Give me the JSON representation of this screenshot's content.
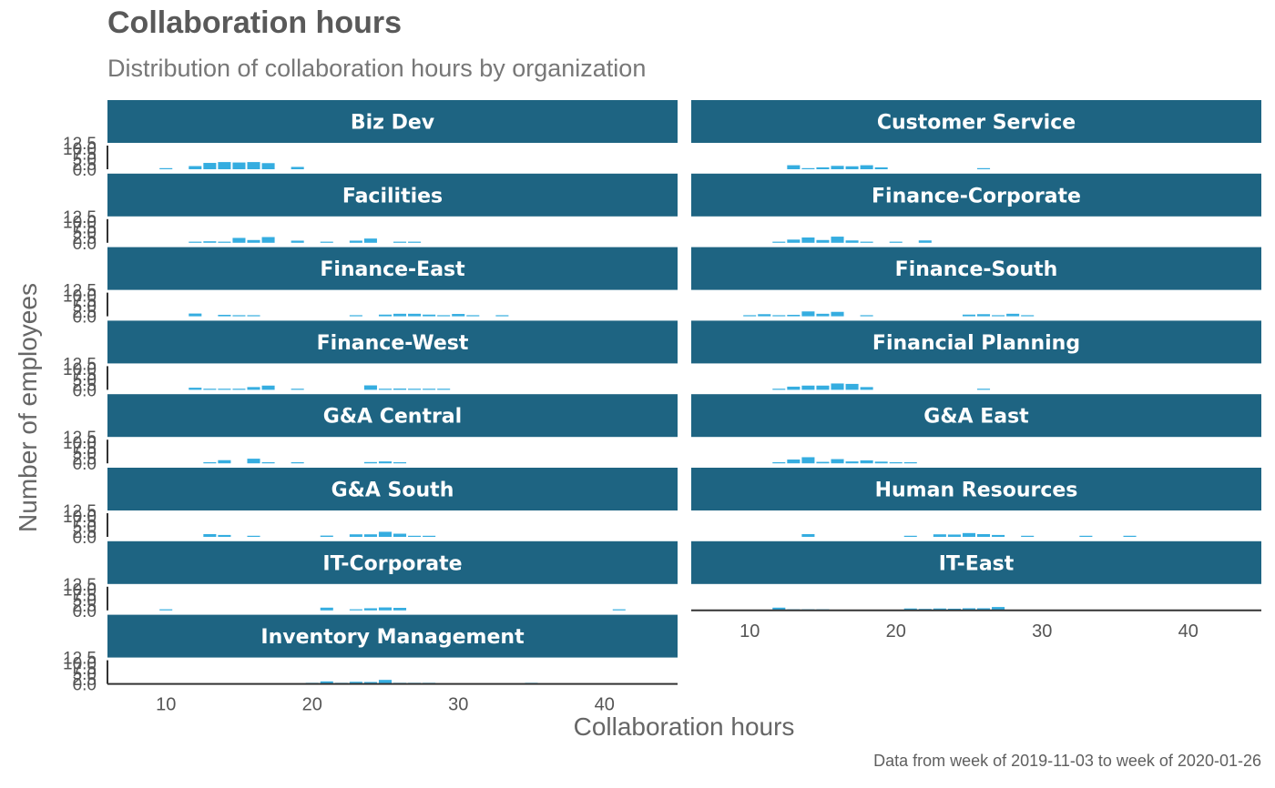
{
  "chart_data": {
    "type": "bar",
    "title": "Collaboration hours",
    "subtitle": "Distribution of collaboration hours by organization",
    "xlabel": "Collaboration hours",
    "ylabel": "Number of employees",
    "caption": "Data from week of 2019-11-03 to week of 2020-01-26",
    "xlim": [
      6,
      45
    ],
    "x_ticks": [
      "10",
      "20",
      "30",
      "40"
    ],
    "y_tick_labels": [
      "0.0",
      "2.5",
      "5.0",
      "7.5",
      "10.0",
      "12.5"
    ],
    "bin_width": 1,
    "colors": {
      "strip": "#1e6482",
      "bar": "#35ade0",
      "axis": "#333333"
    },
    "facets": [
      {
        "name": "Biz Dev",
        "bins": [
          [
            10,
            0.3
          ],
          [
            12,
            1.5
          ],
          [
            13,
            3
          ],
          [
            14,
            3.4
          ],
          [
            15,
            3.2
          ],
          [
            16,
            3.4
          ],
          [
            17,
            2.9
          ],
          [
            19,
            1.1
          ]
        ]
      },
      {
        "name": "Customer Service",
        "bins": [
          [
            13,
            1.9
          ],
          [
            14,
            0.3
          ],
          [
            15,
            0.9
          ],
          [
            16,
            1.6
          ],
          [
            17,
            1.4
          ],
          [
            18,
            1.9
          ],
          [
            19,
            0.9
          ],
          [
            26,
            0.2
          ]
        ]
      },
      {
        "name": "Facilities",
        "bins": [
          [
            12,
            0.3
          ],
          [
            13,
            0.7
          ],
          [
            14,
            0.3
          ],
          [
            15,
            2.3
          ],
          [
            16,
            1.3
          ],
          [
            17,
            2.7
          ],
          [
            19,
            1
          ],
          [
            21,
            0.2
          ],
          [
            23,
            1
          ],
          [
            24,
            2
          ],
          [
            26,
            0.2
          ],
          [
            27,
            0.2
          ]
        ]
      },
      {
        "name": "Finance-Corporate",
        "bins": [
          [
            12,
            0.2
          ],
          [
            13,
            1.5
          ],
          [
            14,
            2.5
          ],
          [
            15,
            1.3
          ],
          [
            16,
            2.9
          ],
          [
            17,
            1.1
          ],
          [
            18,
            0.4
          ],
          [
            20,
            0.2
          ],
          [
            22,
            1.1
          ]
        ]
      },
      {
        "name": "Finance-East",
        "bins": [
          [
            12,
            1.3
          ],
          [
            14,
            0.7
          ],
          [
            15,
            0.2
          ],
          [
            16,
            0.5
          ],
          [
            23,
            0.2
          ],
          [
            25,
            0.8
          ],
          [
            26,
            1.2
          ],
          [
            27,
            1.2
          ],
          [
            28,
            0.8
          ],
          [
            29,
            0.3
          ],
          [
            30,
            1.1
          ],
          [
            31,
            0.3
          ],
          [
            33,
            0.2
          ]
        ]
      },
      {
        "name": "Finance-South",
        "bins": [
          [
            10,
            0.2
          ],
          [
            11,
            1
          ],
          [
            12,
            0.5
          ],
          [
            13,
            0.7
          ],
          [
            14,
            2.3
          ],
          [
            15,
            1.2
          ],
          [
            16,
            2.1
          ],
          [
            18,
            0.2
          ],
          [
            25,
            0.8
          ],
          [
            26,
            1
          ],
          [
            27,
            0.3
          ],
          [
            28,
            1.2
          ],
          [
            29,
            0.2
          ]
        ]
      },
      {
        "name": "Finance-West",
        "bins": [
          [
            12,
            1
          ],
          [
            13,
            0.4
          ],
          [
            14,
            0.4
          ],
          [
            15,
            0.2
          ],
          [
            16,
            1.3
          ],
          [
            17,
            2
          ],
          [
            19,
            0.4
          ],
          [
            24,
            2.1
          ],
          [
            25,
            0.3
          ],
          [
            26,
            0.6
          ],
          [
            27,
            0.2
          ],
          [
            28,
            0.2
          ],
          [
            29,
            0.2
          ]
        ]
      },
      {
        "name": "Financial Planning",
        "bins": [
          [
            12,
            0.2
          ],
          [
            13,
            1.5
          ],
          [
            14,
            2
          ],
          [
            15,
            2
          ],
          [
            16,
            3
          ],
          [
            17,
            2.8
          ],
          [
            18,
            1.3
          ],
          [
            26,
            0.3
          ]
        ]
      },
      {
        "name": "G&A Central",
        "bins": [
          [
            13,
            0.5
          ],
          [
            14,
            1.5
          ],
          [
            16,
            2.2
          ],
          [
            17,
            0.3
          ],
          [
            19,
            0.3
          ],
          [
            24,
            0.6
          ],
          [
            25,
            0.9
          ],
          [
            26,
            0.2
          ]
        ]
      },
      {
        "name": "G&A East",
        "bins": [
          [
            12,
            0.3
          ],
          [
            13,
            1.8
          ],
          [
            14,
            2.9
          ],
          [
            15,
            0.7
          ],
          [
            16,
            2
          ],
          [
            17,
            0.9
          ],
          [
            18,
            1.4
          ],
          [
            19,
            0.8
          ],
          [
            20,
            0.3
          ],
          [
            21,
            0.3
          ]
        ]
      },
      {
        "name": "G&A South",
        "bins": [
          [
            13,
            1.3
          ],
          [
            14,
            0.9
          ],
          [
            16,
            0.2
          ],
          [
            21,
            0.6
          ],
          [
            23,
            1.2
          ],
          [
            24,
            1.2
          ],
          [
            25,
            2.4
          ],
          [
            26,
            1.5
          ],
          [
            27,
            0.3
          ],
          [
            28,
            0.3
          ]
        ]
      },
      {
        "name": "Human Resources",
        "bins": [
          [
            14,
            1.3
          ],
          [
            21,
            0.3
          ],
          [
            23,
            1.2
          ],
          [
            24,
            1.1
          ],
          [
            25,
            1.8
          ],
          [
            26,
            1.3
          ],
          [
            27,
            0.9
          ],
          [
            29,
            0.4
          ],
          [
            33,
            0.2
          ],
          [
            36,
            0.2
          ]
        ]
      },
      {
        "name": "IT-Corporate",
        "bins": [
          [
            10,
            0.2
          ],
          [
            21,
            1.3
          ],
          [
            23,
            0.4
          ],
          [
            24,
            1
          ],
          [
            25,
            1.4
          ],
          [
            26,
            1.2
          ],
          [
            41,
            0.2
          ]
        ]
      },
      {
        "name": "IT-East",
        "bins": [
          [
            12,
            1.3
          ],
          [
            13,
            0.5
          ],
          [
            14,
            0.2
          ],
          [
            15,
            0.2
          ],
          [
            21,
            0.9
          ],
          [
            22,
            0.7
          ],
          [
            23,
            0.9
          ],
          [
            24,
            0.8
          ],
          [
            25,
            1
          ],
          [
            26,
            1
          ],
          [
            27,
            1.6
          ]
        ]
      },
      {
        "name": "Inventory Management",
        "bins": [
          [
            20,
            0.3
          ],
          [
            21,
            1.2
          ],
          [
            22,
            0.2
          ],
          [
            23,
            1
          ],
          [
            24,
            0.9
          ],
          [
            25,
            1.9
          ],
          [
            26,
            0.3
          ],
          [
            27,
            0.2
          ],
          [
            28,
            0.2
          ],
          [
            35,
            0.2
          ]
        ]
      }
    ]
  }
}
